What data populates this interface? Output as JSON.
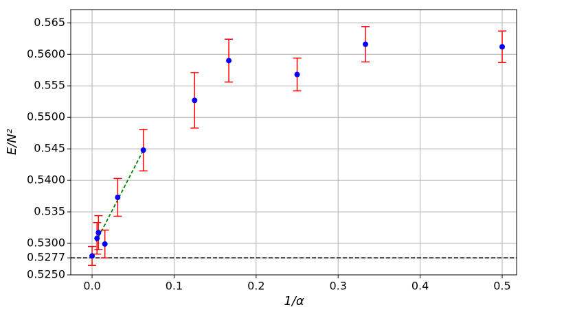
{
  "chart_data": {
    "type": "errorbar",
    "xlabel": "1/α",
    "ylabel": "E/N²",
    "xlim": [
      -0.026,
      0.5176
    ],
    "ylim": [
      0.525,
      0.5671
    ],
    "xticks": [
      {
        "value": 0,
        "label": "0.0"
      },
      0.1,
      0.2,
      0.3,
      0.4,
      0.5
    ],
    "yticks": [
      {
        "value": 0.525,
        "label": "0.5250"
      },
      0.5277,
      {
        "value": 0.53,
        "label": "0.5300"
      },
      0.535,
      {
        "value": 0.54,
        "label": "0.5400"
      },
      0.545,
      {
        "value": 0.55,
        "label": "0.5500"
      },
      0.555,
      {
        "value": 0.56,
        "label": "0.5600"
      },
      0.565
    ],
    "grid": true,
    "points": {
      "color": "#0000ff",
      "error_color": "#ff0000",
      "x": [
        0,
        0.006,
        0.0078,
        0.0156,
        0.03125,
        0.0625,
        0.125,
        0.1667,
        0.25,
        0.3333,
        0.5
      ],
      "values": [
        0.528,
        0.5308,
        0.5317,
        0.5299,
        0.5373,
        0.5448,
        0.5527,
        0.559,
        0.5568,
        0.5616,
        0.5612
      ],
      "errors": [
        0.0015,
        0.0025,
        0.0027,
        0.0022,
        0.003,
        0.0033,
        0.0044,
        0.0034,
        0.0026,
        0.0028,
        0.0025
      ]
    },
    "fit_line": {
      "color": "#008000",
      "x": [
        0.005,
        0.0625
      ],
      "values": [
        0.5303,
        0.5448
      ]
    },
    "hline": {
      "value": 0.5277,
      "color": "#000000"
    }
  }
}
